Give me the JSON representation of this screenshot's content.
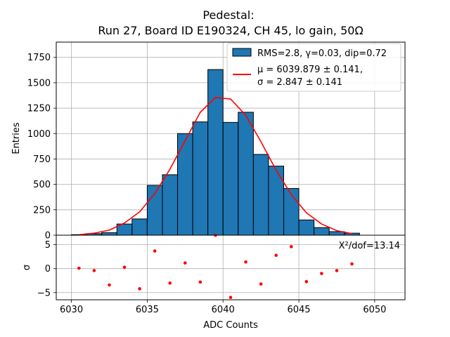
{
  "chart_data": {
    "type": "bar",
    "title": "Pedestal:",
    "subtitle": "Run 27, Board ID E190324, CH 45, lo gain, 50Ω",
    "xlabel": "ADC Counts",
    "ylabel": "Entries",
    "residual_ylabel": "σ",
    "xlim": [
      6029,
      6052
    ],
    "ylim": [
      0,
      1900
    ],
    "residual_ylim": [
      -6.5,
      7
    ],
    "xticks": [
      6030,
      6035,
      6040,
      6045,
      6050
    ],
    "yticks": [
      0,
      250,
      500,
      750,
      1000,
      1250,
      1500,
      1750
    ],
    "residual_yticks": [
      -5,
      0,
      5
    ],
    "grid": true,
    "legend_position": "top-right",
    "bin_width": 1,
    "histogram": {
      "name": "RMS=2.8, γ=0.03, dip=0.72",
      "bin_left_edges": [
        6030,
        6031,
        6032,
        6033,
        6034,
        6035,
        6036,
        6037,
        6038,
        6039,
        6040,
        6041,
        6042,
        6043,
        6044,
        6045,
        6046,
        6047,
        6048
      ],
      "values": [
        5,
        15,
        25,
        110,
        160,
        490,
        595,
        1000,
        1115,
        1630,
        1110,
        1210,
        795,
        680,
        460,
        150,
        75,
        35,
        20
      ],
      "fill_color": "#1f77b4",
      "edge_color": "#000000"
    },
    "fit": {
      "name_line1": "μ = 6039.879 ± 0.141,",
      "name_line2": "σ = 2.847 ± 0.141",
      "color": "#ff0000",
      "x": [
        6030.5,
        6031.5,
        6032.5,
        6033.5,
        6034.5,
        6035.5,
        6036.5,
        6037.5,
        6038.5,
        6039.5,
        6040.5,
        6041.5,
        6042.5,
        6043.5,
        6044.5,
        6045.5,
        6046.5,
        6047.5,
        6048.5
      ],
      "y": [
        5,
        20,
        50,
        120,
        230,
        410,
        650,
        930,
        1210,
        1355,
        1340,
        1180,
        920,
        640,
        400,
        220,
        110,
        45,
        15
      ]
    },
    "residuals": {
      "color": "#ff0000",
      "x": [
        6030.5,
        6031.5,
        6032.5,
        6033.5,
        6034.5,
        6035.5,
        6036.5,
        6037.5,
        6038.5,
        6039.5,
        6040.5,
        6041.5,
        6042.5,
        6043.5,
        6044.5,
        6045.5,
        6046.5,
        6047.5,
        6048.5
      ],
      "y": [
        0.1,
        -0.4,
        -3.4,
        0.3,
        -4.2,
        3.7,
        -3.0,
        1.2,
        -2.8,
        7.0,
        -6.0,
        1.4,
        -3.2,
        2.8,
        4.6,
        -2.7,
        -1.0,
        -0.4,
        1.0
      ]
    },
    "chi2_label": "X²/dof=13.14"
  }
}
